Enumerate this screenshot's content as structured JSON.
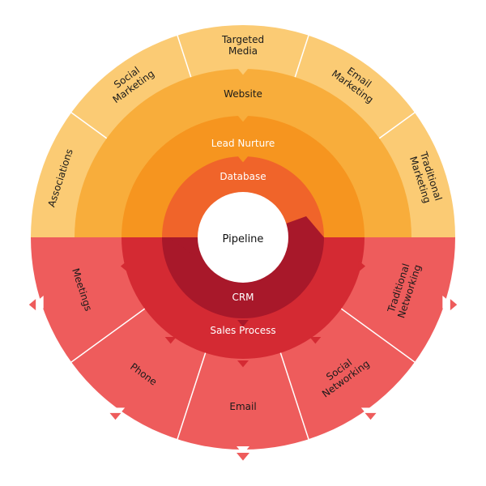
{
  "center": {
    "label": "Pipeline"
  },
  "marketing": {
    "database": "Database",
    "lead_nurture": "Lead Nurture",
    "website": "Website",
    "outer_segments": [
      {
        "lines": [
          "Associations"
        ]
      },
      {
        "lines": [
          "Social",
          "Marketing"
        ]
      },
      {
        "lines": [
          "Targeted",
          "Media"
        ]
      },
      {
        "lines": [
          "Email",
          "Marketing"
        ]
      },
      {
        "lines": [
          "Traditional",
          "Marketing"
        ]
      }
    ]
  },
  "sales": {
    "crm": "CRM",
    "sales_process": "Sales Process",
    "outer_segments": [
      {
        "lines": [
          "Meetings"
        ]
      },
      {
        "lines": [
          "Phone"
        ]
      },
      {
        "lines": [
          "Email"
        ]
      },
      {
        "lines": [
          "Social",
          "Networking"
        ]
      },
      {
        "lines": [
          "Traditional",
          "Networking"
        ]
      }
    ]
  },
  "colors": {
    "marketing_outer": "#fbcb74",
    "website": "#f8ad3b",
    "lead_nurture": "#f6951f",
    "database": "#f0642a",
    "sales_outer": "#ee5c5c",
    "sales_process": "#d42a33",
    "crm": "#a8182a",
    "center": "#ffffff",
    "divider": "#ffffff"
  }
}
